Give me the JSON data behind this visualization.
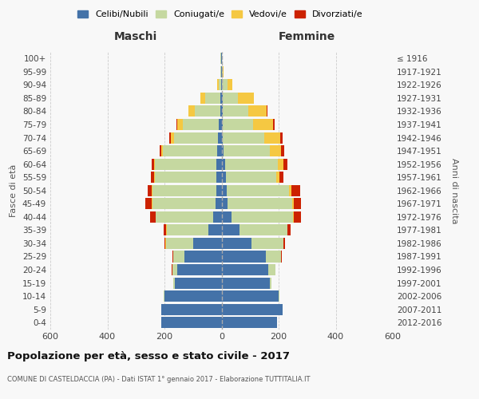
{
  "age_groups": [
    "0-4",
    "5-9",
    "10-14",
    "15-19",
    "20-24",
    "25-29",
    "30-34",
    "35-39",
    "40-44",
    "45-49",
    "50-54",
    "55-59",
    "60-64",
    "65-69",
    "70-74",
    "75-79",
    "80-84",
    "85-89",
    "90-94",
    "95-99",
    "100+"
  ],
  "birth_years": [
    "2012-2016",
    "2007-2011",
    "2002-2006",
    "1997-2001",
    "1992-1996",
    "1987-1991",
    "1982-1986",
    "1977-1981",
    "1972-1976",
    "1967-1971",
    "1962-1966",
    "1957-1961",
    "1952-1956",
    "1947-1951",
    "1942-1946",
    "1937-1941",
    "1932-1936",
    "1927-1931",
    "1922-1926",
    "1917-1921",
    "≤ 1916"
  ],
  "males": {
    "celibi": [
      210,
      210,
      200,
      165,
      155,
      130,
      100,
      45,
      30,
      22,
      18,
      18,
      18,
      15,
      12,
      10,
      5,
      3,
      2,
      1,
      1
    ],
    "coniugati": [
      0,
      0,
      2,
      5,
      18,
      38,
      95,
      148,
      200,
      220,
      225,
      215,
      215,
      190,
      155,
      125,
      90,
      55,
      8,
      3,
      2
    ],
    "vedovi": [
      0,
      0,
      0,
      0,
      0,
      1,
      1,
      1,
      2,
      2,
      2,
      3,
      3,
      5,
      10,
      20,
      20,
      15,
      5,
      0,
      0
    ],
    "divorziati": [
      0,
      0,
      0,
      0,
      1,
      2,
      5,
      10,
      18,
      22,
      15,
      12,
      10,
      8,
      5,
      3,
      0,
      0,
      0,
      0,
      0
    ]
  },
  "females": {
    "nubili": [
      195,
      215,
      200,
      170,
      165,
      155,
      105,
      62,
      35,
      20,
      18,
      15,
      12,
      8,
      5,
      5,
      5,
      3,
      2,
      1,
      0
    ],
    "coniugate": [
      0,
      0,
      2,
      5,
      23,
      52,
      112,
      168,
      215,
      228,
      218,
      178,
      185,
      160,
      145,
      105,
      88,
      55,
      18,
      3,
      1
    ],
    "vedove": [
      0,
      0,
      0,
      0,
      0,
      1,
      1,
      2,
      3,
      5,
      8,
      10,
      20,
      40,
      55,
      70,
      65,
      55,
      18,
      3,
      1
    ],
    "divorziate": [
      0,
      0,
      0,
      0,
      1,
      2,
      5,
      10,
      25,
      25,
      32,
      15,
      15,
      12,
      8,
      5,
      2,
      0,
      0,
      0,
      0
    ]
  },
  "colors": {
    "celibi": "#4472A8",
    "coniugati": "#C5D8A0",
    "vedovi": "#F5C842",
    "divorziati": "#CC2200"
  },
  "title": "Popolazione per età, sesso e stato civile - 2017",
  "subtitle": "COMUNE DI CASTELDACCIA (PA) - Dati ISTAT 1° gennaio 2017 - Elaborazione TUTTITALIA.IT",
  "xlabel_left": "Maschi",
  "xlabel_right": "Femmine",
  "ylabel_left": "Fasce di età",
  "ylabel_right": "Anni di nascita",
  "xlim": 600,
  "bg_color": "#f8f8f8"
}
